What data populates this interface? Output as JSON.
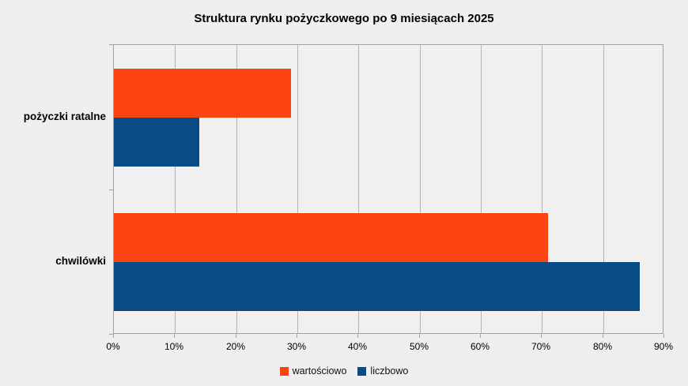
{
  "colors": {
    "background": "#efefef",
    "plot_background": "#f0f0f0",
    "gridline": "#b4b4b4",
    "axis_frame": "#a3a3a3",
    "text": "#000000",
    "series_wartosciowo": "#fc4412",
    "series_liczbowo": "#0a4b85"
  },
  "chart_data": {
    "type": "bar",
    "orientation": "horizontal",
    "title": "Struktura rynku pożyczkowego po 9 miesiącach 2025",
    "categories": [
      "pożyczki ratalne",
      "chwilówki"
    ],
    "series": [
      {
        "name": "wartościowo",
        "color": "#fc4412",
        "values": [
          29,
          71
        ]
      },
      {
        "name": "liczbowo",
        "color": "#0a4b85",
        "values": [
          14,
          86
        ]
      }
    ],
    "x_axis": {
      "min": 0,
      "max": 90,
      "tick_step": 10,
      "unit": "%",
      "tick_labels": [
        "0%",
        "10%",
        "20%",
        "30%",
        "40%",
        "50%",
        "60%",
        "70%",
        "80%",
        "90%"
      ]
    },
    "grid": true,
    "legend_position": "bottom"
  }
}
